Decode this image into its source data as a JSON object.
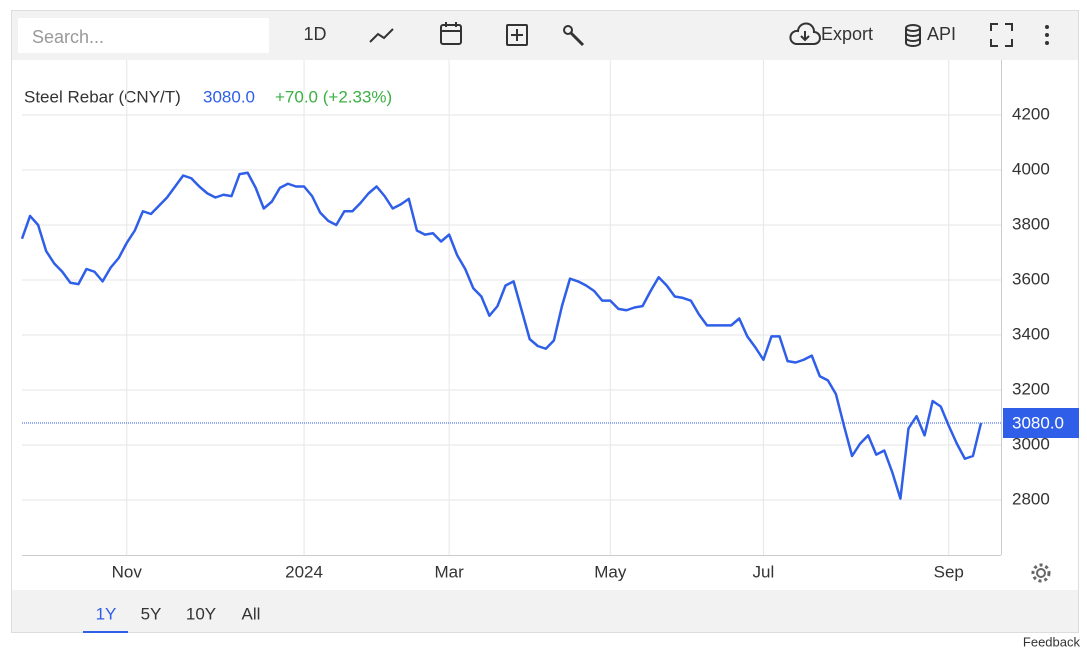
{
  "toolbar": {
    "search_placeholder": "Search...",
    "interval": "1D",
    "export": "Export",
    "api": "API"
  },
  "chart_data": {
    "type": "line",
    "title": "Steel Rebar (CNY/T)",
    "price": "3080.0",
    "change": "+70.0 (+2.33%)",
    "color": "#2f5ee8",
    "grid": true,
    "categories": [
      null,
      null,
      null,
      null,
      null,
      null,
      null,
      null,
      null,
      null,
      null,
      null,
      null,
      "Nov",
      null,
      null,
      null,
      null,
      null,
      null,
      null,
      null,
      null,
      null,
      null,
      null,
      null,
      null,
      null,
      null,
      null,
      null,
      null,
      null,
      null,
      "2024",
      null,
      null,
      null,
      null,
      null,
      null,
      null,
      null,
      null,
      null,
      null,
      null,
      null,
      null,
      null,
      null,
      null,
      "Mar",
      null,
      null,
      null,
      null,
      null,
      null,
      null,
      null,
      null,
      null,
      null,
      null,
      null,
      null,
      null,
      null,
      null,
      null,
      null,
      "May",
      null,
      null,
      null,
      null,
      null,
      null,
      null,
      null,
      null,
      null,
      null,
      null,
      null,
      null,
      null,
      null,
      null,
      null,
      "Jul",
      null,
      null,
      null,
      null,
      null,
      null,
      null,
      null,
      null,
      null,
      null,
      null,
      null,
      null,
      null,
      null,
      null,
      null,
      null,
      null,
      null,
      null,
      "Sep",
      null,
      null,
      null,
      null
    ],
    "values": [
      3750,
      3833,
      3800,
      3705,
      3660,
      3630,
      3590,
      3585,
      3640,
      3630,
      3595,
      3645,
      3680,
      3735,
      3780,
      3850,
      3840,
      3870,
      3900,
      3940,
      3980,
      3970,
      3940,
      3915,
      3900,
      3910,
      3905,
      3985,
      3990,
      3935,
      3860,
      3885,
      3935,
      3950,
      3940,
      3940,
      3905,
      3845,
      3815,
      3800,
      3850,
      3850,
      3880,
      3915,
      3940,
      3905,
      3860,
      3875,
      3895,
      3780,
      3765,
      3770,
      3740,
      3765,
      3690,
      3640,
      3570,
      3540,
      3470,
      3505,
      3580,
      3595,
      3490,
      3385,
      3360,
      3350,
      3380,
      3505,
      3605,
      3595,
      3580,
      3560,
      3525,
      3525,
      3495,
      3490,
      3500,
      3505,
      3560,
      3610,
      3580,
      3540,
      3535,
      3525,
      3475,
      3435,
      3435,
      3435,
      3435,
      3460,
      3395,
      3355,
      3310,
      3395,
      3395,
      3305,
      3300,
      3310,
      3325,
      3250,
      3235,
      3185,
      3070,
      2960,
      3005,
      3035,
      2965,
      2980,
      2900,
      2805,
      3060,
      3105,
      3035,
      3160,
      3140,
      3070,
      3005,
      2950,
      2960,
      3080
    ],
    "ylim": [
      2600,
      4400
    ],
    "yticks": [
      2800,
      3000,
      3200,
      3400,
      3600,
      3800,
      4000,
      4200
    ]
  },
  "ranges": [
    "1Y",
    "5Y",
    "10Y",
    "All"
  ],
  "feedback": "Feedback"
}
